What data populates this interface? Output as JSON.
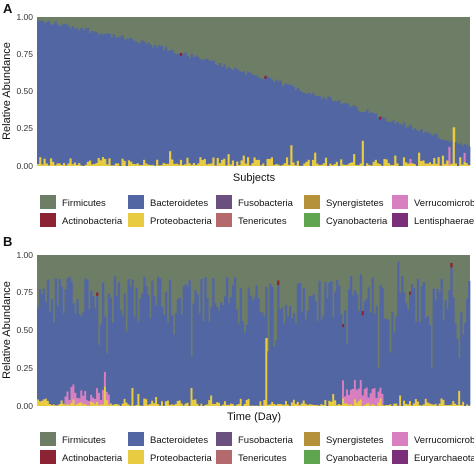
{
  "chart_data": [
    {
      "panel": "A",
      "type": "bar",
      "stacked": true,
      "xlabel": "Subjects",
      "ylabel": "Relative Abundance",
      "ylim": [
        0,
        1
      ],
      "yticks": [
        "0.00",
        "0.25",
        "0.50",
        "0.75",
        "1.00"
      ],
      "ordering": "sorted by Bacteroidetes, descending",
      "n_bars": 200,
      "bacteroidetes_range": [
        0.97,
        0.12
      ],
      "proteobacteria_typical": [
        0.0,
        0.06
      ],
      "proteobacteria_spikes": [
        [
          30,
          0.06
        ],
        [
          61,
          0.1
        ],
        [
          88,
          0.08
        ],
        [
          95,
          0.07
        ],
        [
          117,
          0.14
        ],
        [
          128,
          0.09
        ],
        [
          146,
          0.08
        ],
        [
          150,
          0.17
        ],
        [
          165,
          0.07
        ],
        [
          176,
          0.09
        ],
        [
          187,
          0.07
        ],
        [
          192,
          0.26
        ]
      ],
      "verrucomicrobia_spikes": [
        [
          172,
          0.03
        ],
        [
          190,
          0.12
        ],
        [
          197,
          0.06
        ]
      ],
      "actinobacteria_spikes": [
        [
          66,
          0.02
        ],
        [
          105,
          0.02
        ],
        [
          158,
          0.02
        ]
      ]
    },
    {
      "panel": "B",
      "type": "bar",
      "stacked": true,
      "xlabel": "Time (Day)",
      "ylabel": "Relative Abundance",
      "ylim": [
        0,
        1
      ],
      "yticks": [
        "0.00",
        "0.25",
        "0.50",
        "0.75",
        "1.00"
      ],
      "n_bars": 220,
      "bacteroidetes_typical": [
        0.55,
        0.85
      ],
      "bacteroidetes_mean": 0.7,
      "proteobacteria_typical": [
        0.0,
        0.05
      ],
      "proteobacteria_spikes": [
        [
          34,
          0.13
        ],
        [
          48,
          0.12
        ],
        [
          51,
          0.08
        ],
        [
          60,
          0.06
        ],
        [
          78,
          0.12
        ],
        [
          88,
          0.07
        ],
        [
          116,
          0.45
        ],
        [
          150,
          0.08
        ],
        [
          184,
          0.07
        ],
        [
          205,
          0.05
        ],
        [
          214,
          0.1
        ]
      ],
      "verrucomicrobia_periods": [
        [
          14,
          36,
          0.12
        ],
        [
          155,
          175,
          0.15
        ]
      ],
      "actinobacteria_spikes": [
        [
          30,
          0.02
        ],
        [
          122,
          0.03
        ],
        [
          155,
          0.02
        ],
        [
          165,
          0.03
        ],
        [
          189,
          0.02
        ],
        [
          210,
          0.03
        ]
      ]
    }
  ],
  "legend": [
    {
      "label": "Firmicutes",
      "color": "#6e7d66"
    },
    {
      "label": "Bacteroidetes",
      "color": "#5266a3"
    },
    {
      "label": "Fusobacteria",
      "color": "#6b4f7e"
    },
    {
      "label": "Synergistetes",
      "color": "#b5923a"
    },
    {
      "label": "Verrucomicrobia",
      "color": "#d77fc0"
    },
    {
      "label": "Actinobacteria",
      "color": "#8c2332"
    },
    {
      "label": "Proteobacteria",
      "color": "#e9cb41"
    },
    {
      "label": "Tenericutes",
      "color": "#b46a6c"
    },
    {
      "label": "Cyanobacteria",
      "color": "#5ea54e"
    },
    {
      "label": "Lentisphaerae",
      "color": "#7b2e7a"
    }
  ],
  "legend_b": [
    {
      "label": "Firmicutes",
      "color": "#6e7d66"
    },
    {
      "label": "Bacteroidetes",
      "color": "#5266a3"
    },
    {
      "label": "Fusobacteria",
      "color": "#6b4f7e"
    },
    {
      "label": "Synergistetes",
      "color": "#b5923a"
    },
    {
      "label": "Verrucomicrobia",
      "color": "#d77fc0"
    },
    {
      "label": "Actinobacteria",
      "color": "#8c2332"
    },
    {
      "label": "Proteobacteria",
      "color": "#e9cb41"
    },
    {
      "label": "Tenericutes",
      "color": "#b46a6c"
    },
    {
      "label": "Cyanobacteria",
      "color": "#5ea54e"
    },
    {
      "label": "Euryarchaeota",
      "color": "#7b2e7a"
    }
  ]
}
